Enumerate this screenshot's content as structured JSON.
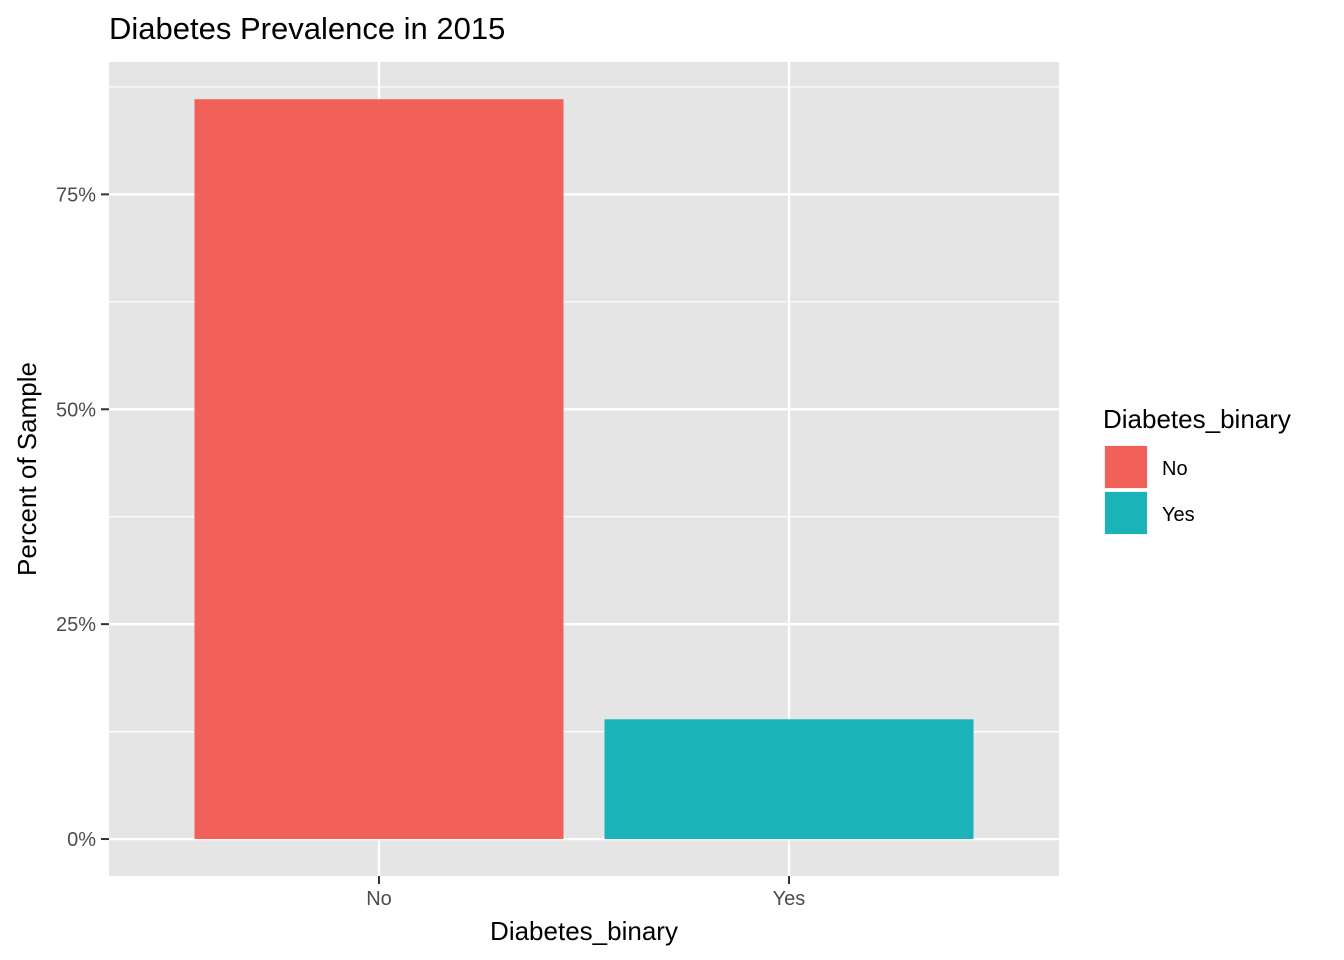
{
  "chart_data": {
    "type": "bar",
    "title": "Diabetes Prevalence in 2015",
    "xlabel": "Diabetes_binary",
    "ylabel": "Percent of Sample",
    "categories": [
      "No",
      "Yes"
    ],
    "values": [
      86.07,
      13.93
    ],
    "ylim": [
      -4.3,
      90.4
    ],
    "y_ticks": [
      0,
      25,
      50,
      75
    ],
    "y_tick_labels": [
      "0%",
      "25%",
      "50%",
      "75%"
    ],
    "grid": true,
    "legend": {
      "title": "Diabetes_binary",
      "position": "right",
      "items": [
        {
          "label": "No",
          "color": "#F8766D"
        },
        {
          "label": "Yes",
          "color": "#00BFC4"
        }
      ]
    },
    "colors": {
      "No": "#F2605A",
      "Yes": "#19B3B8",
      "panel": "#E5E5E5",
      "grid": "#FFFFFF"
    }
  }
}
